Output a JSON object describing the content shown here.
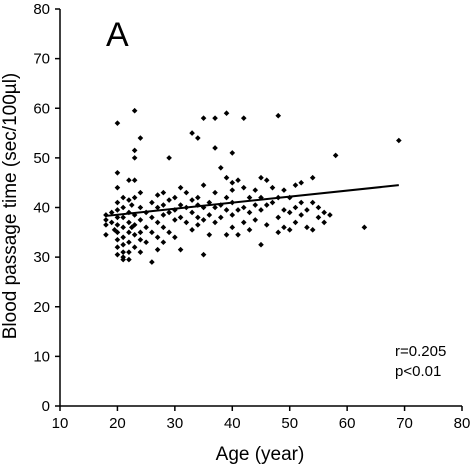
{
  "chart_data": {
    "type": "scatter",
    "panel_label": "A",
    "xlabel": "Age (year)",
    "ylabel": "Blood passage time (sec/100µl)",
    "xlim": [
      10,
      80
    ],
    "ylim": [
      0,
      80
    ],
    "x_ticks": [
      10,
      20,
      30,
      40,
      50,
      60,
      70,
      80
    ],
    "y_ticks": [
      0,
      10,
      20,
      30,
      40,
      50,
      60,
      70,
      80
    ],
    "grid": false,
    "annotations": [
      "r=0.205",
      "p<0.01"
    ],
    "trendline": {
      "x": [
        18,
        69
      ],
      "y": [
        38.3,
        44.5
      ]
    },
    "points": [
      {
        "x": 18,
        "y": 34.5
      },
      {
        "x": 18,
        "y": 36.5
      },
      {
        "x": 18,
        "y": 37.5
      },
      {
        "x": 18,
        "y": 38.5
      },
      {
        "x": 19,
        "y": 37.0
      },
      {
        "x": 19,
        "y": 39.0
      },
      {
        "x": 19.5,
        "y": 35.5
      },
      {
        "x": 20,
        "y": 57.0
      },
      {
        "x": 20,
        "y": 47.0
      },
      {
        "x": 20,
        "y": 44.0
      },
      {
        "x": 20,
        "y": 41.0
      },
      {
        "x": 20,
        "y": 39.5
      },
      {
        "x": 20,
        "y": 38.0
      },
      {
        "x": 20,
        "y": 36.5
      },
      {
        "x": 20,
        "y": 35.0
      },
      {
        "x": 20,
        "y": 33.5
      },
      {
        "x": 20,
        "y": 32.0
      },
      {
        "x": 20,
        "y": 30.5
      },
      {
        "x": 21,
        "y": 42.0
      },
      {
        "x": 21,
        "y": 40.0
      },
      {
        "x": 21,
        "y": 38.0
      },
      {
        "x": 21,
        "y": 36.0
      },
      {
        "x": 21,
        "y": 34.0
      },
      {
        "x": 21,
        "y": 32.5
      },
      {
        "x": 21,
        "y": 31.0
      },
      {
        "x": 21,
        "y": 30.0
      },
      {
        "x": 21,
        "y": 29.5
      },
      {
        "x": 22,
        "y": 45.5
      },
      {
        "x": 22,
        "y": 41.5
      },
      {
        "x": 22,
        "y": 39.0
      },
      {
        "x": 22,
        "y": 37.0
      },
      {
        "x": 22,
        "y": 35.0
      },
      {
        "x": 22,
        "y": 33.0
      },
      {
        "x": 22,
        "y": 31.0
      },
      {
        "x": 22,
        "y": 29.5
      },
      {
        "x": 22.5,
        "y": 36.0
      },
      {
        "x": 22.5,
        "y": 40.5
      },
      {
        "x": 23,
        "y": 59.5
      },
      {
        "x": 23,
        "y": 51.5
      },
      {
        "x": 23,
        "y": 50.0
      },
      {
        "x": 23,
        "y": 45.5
      },
      {
        "x": 23,
        "y": 42.0
      },
      {
        "x": 23,
        "y": 38.5
      },
      {
        "x": 23,
        "y": 36.5
      },
      {
        "x": 23,
        "y": 34.5
      },
      {
        "x": 23,
        "y": 32.0
      },
      {
        "x": 24,
        "y": 54.0
      },
      {
        "x": 24,
        "y": 43.0
      },
      {
        "x": 24,
        "y": 40.0
      },
      {
        "x": 24,
        "y": 37.5
      },
      {
        "x": 24,
        "y": 35.0
      },
      {
        "x": 24,
        "y": 33.5
      },
      {
        "x": 24,
        "y": 31.0
      },
      {
        "x": 25,
        "y": 39.0
      },
      {
        "x": 25,
        "y": 36.0
      },
      {
        "x": 25,
        "y": 33.0
      },
      {
        "x": 26,
        "y": 41.0
      },
      {
        "x": 26,
        "y": 38.0
      },
      {
        "x": 26,
        "y": 35.0
      },
      {
        "x": 26,
        "y": 29.0
      },
      {
        "x": 27,
        "y": 42.5
      },
      {
        "x": 27,
        "y": 40.0
      },
      {
        "x": 27,
        "y": 37.0
      },
      {
        "x": 27,
        "y": 34.0
      },
      {
        "x": 27,
        "y": 31.5
      },
      {
        "x": 28,
        "y": 43.0
      },
      {
        "x": 28,
        "y": 40.5
      },
      {
        "x": 28,
        "y": 38.5
      },
      {
        "x": 28,
        "y": 36.0
      },
      {
        "x": 28,
        "y": 33.0
      },
      {
        "x": 29,
        "y": 50.0
      },
      {
        "x": 29,
        "y": 41.5
      },
      {
        "x": 29,
        "y": 39.0
      },
      {
        "x": 29,
        "y": 35.0
      },
      {
        "x": 30,
        "y": 42.0
      },
      {
        "x": 30,
        "y": 39.5
      },
      {
        "x": 30,
        "y": 37.5
      },
      {
        "x": 30,
        "y": 34.0
      },
      {
        "x": 31,
        "y": 44.0
      },
      {
        "x": 31,
        "y": 40.5
      },
      {
        "x": 31,
        "y": 38.0
      },
      {
        "x": 31,
        "y": 31.5
      },
      {
        "x": 32,
        "y": 43.0
      },
      {
        "x": 32,
        "y": 40.0
      },
      {
        "x": 32,
        "y": 37.0
      },
      {
        "x": 33,
        "y": 55.0
      },
      {
        "x": 33,
        "y": 41.5
      },
      {
        "x": 33,
        "y": 39.0
      },
      {
        "x": 33,
        "y": 35.5
      },
      {
        "x": 34,
        "y": 54.0
      },
      {
        "x": 34,
        "y": 42.0
      },
      {
        "x": 34,
        "y": 40.5
      },
      {
        "x": 34,
        "y": 38.0
      },
      {
        "x": 34,
        "y": 36.5
      },
      {
        "x": 35,
        "y": 58.0
      },
      {
        "x": 35,
        "y": 44.5
      },
      {
        "x": 35,
        "y": 40.0
      },
      {
        "x": 35,
        "y": 37.5
      },
      {
        "x": 35,
        "y": 30.5
      },
      {
        "x": 36,
        "y": 41.0
      },
      {
        "x": 36,
        "y": 38.5
      },
      {
        "x": 36,
        "y": 34.5
      },
      {
        "x": 37,
        "y": 58.0
      },
      {
        "x": 37,
        "y": 52.0
      },
      {
        "x": 37,
        "y": 43.0
      },
      {
        "x": 37,
        "y": 40.0
      },
      {
        "x": 37,
        "y": 37.0
      },
      {
        "x": 38,
        "y": 48.0
      },
      {
        "x": 38,
        "y": 40.5
      },
      {
        "x": 38,
        "y": 38.0
      },
      {
        "x": 39,
        "y": 59.0
      },
      {
        "x": 39,
        "y": 46.0
      },
      {
        "x": 39,
        "y": 42.0
      },
      {
        "x": 39,
        "y": 39.5
      },
      {
        "x": 39,
        "y": 34.5
      },
      {
        "x": 40,
        "y": 51.0
      },
      {
        "x": 40,
        "y": 45.0
      },
      {
        "x": 40,
        "y": 43.5
      },
      {
        "x": 40,
        "y": 41.0
      },
      {
        "x": 40,
        "y": 38.5
      },
      {
        "x": 40,
        "y": 36.0
      },
      {
        "x": 41,
        "y": 45.5
      },
      {
        "x": 41,
        "y": 39.5
      },
      {
        "x": 41,
        "y": 34.5
      },
      {
        "x": 42,
        "y": 58.0
      },
      {
        "x": 42,
        "y": 44.0
      },
      {
        "x": 42,
        "y": 40.0
      },
      {
        "x": 42,
        "y": 37.0
      },
      {
        "x": 43,
        "y": 42.0
      },
      {
        "x": 43,
        "y": 39.0
      },
      {
        "x": 43,
        "y": 35.5
      },
      {
        "x": 44,
        "y": 43.5
      },
      {
        "x": 44,
        "y": 40.5
      },
      {
        "x": 44,
        "y": 37.5
      },
      {
        "x": 45,
        "y": 46.0
      },
      {
        "x": 45,
        "y": 42.0
      },
      {
        "x": 45,
        "y": 39.5
      },
      {
        "x": 45,
        "y": 32.5
      },
      {
        "x": 46,
        "y": 45.5
      },
      {
        "x": 46,
        "y": 40.5
      },
      {
        "x": 46,
        "y": 36.5
      },
      {
        "x": 47,
        "y": 44.0
      },
      {
        "x": 47,
        "y": 41.0
      },
      {
        "x": 48,
        "y": 58.5
      },
      {
        "x": 48,
        "y": 42.0
      },
      {
        "x": 48,
        "y": 38.0
      },
      {
        "x": 48,
        "y": 35.0
      },
      {
        "x": 49,
        "y": 43.5
      },
      {
        "x": 49,
        "y": 39.5
      },
      {
        "x": 49,
        "y": 36.0
      },
      {
        "x": 50,
        "y": 42.0
      },
      {
        "x": 50,
        "y": 39.0
      },
      {
        "x": 50,
        "y": 35.5
      },
      {
        "x": 51,
        "y": 44.5
      },
      {
        "x": 51,
        "y": 40.0
      },
      {
        "x": 51,
        "y": 37.0
      },
      {
        "x": 52,
        "y": 45.0
      },
      {
        "x": 52,
        "y": 41.0
      },
      {
        "x": 52,
        "y": 38.5
      },
      {
        "x": 53,
        "y": 39.5
      },
      {
        "x": 53,
        "y": 36.0
      },
      {
        "x": 54,
        "y": 46.0
      },
      {
        "x": 54,
        "y": 41.0
      },
      {
        "x": 54,
        "y": 35.5
      },
      {
        "x": 55,
        "y": 40.0
      },
      {
        "x": 55,
        "y": 38.0
      },
      {
        "x": 56,
        "y": 39.0
      },
      {
        "x": 56,
        "y": 37.0
      },
      {
        "x": 57,
        "y": 38.5
      },
      {
        "x": 58,
        "y": 50.5
      },
      {
        "x": 63,
        "y": 36.0
      },
      {
        "x": 69,
        "y": 53.5
      }
    ]
  }
}
